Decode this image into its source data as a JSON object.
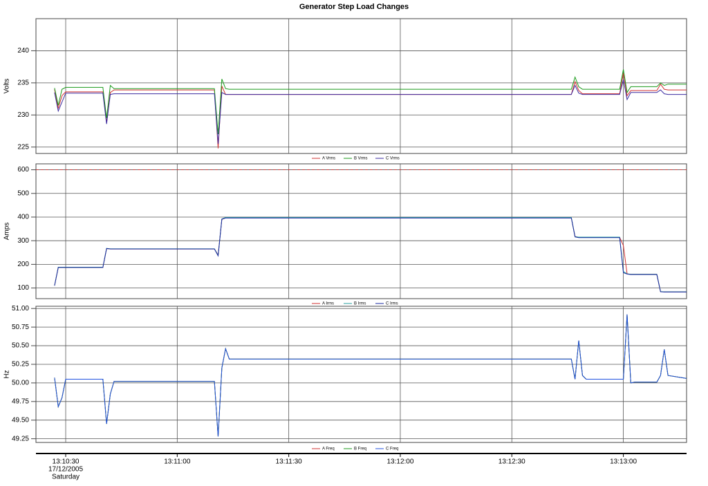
{
  "title": "Generator Step Load Changes",
  "chart_data": [
    {
      "type": "line",
      "ylabel": "Volts",
      "grid": true,
      "legend": "bottom",
      "x": [
        "13:10:27",
        "13:10:28",
        "13:10:29",
        "13:10:30",
        "13:10:31",
        "13:10:40",
        "13:10:41",
        "13:10:42",
        "13:10:43",
        "13:10:44",
        "13:11:10",
        "13:11:11",
        "13:11:12",
        "13:11:13",
        "13:11:14",
        "13:12:46",
        "13:12:47",
        "13:12:48",
        "13:12:49",
        "13:12:50",
        "13:12:59",
        "13:13:00",
        "13:13:01",
        "13:13:02",
        "13:13:03",
        "13:13:09",
        "13:13:10",
        "13:13:11",
        "13:13:12",
        "13:13:17"
      ],
      "xlim": [
        "13:10:22",
        "13:13:17"
      ],
      "xticks": [
        "13:10:30",
        "13:11:00",
        "13:11:30",
        "13:12:00",
        "13:12:30",
        "13:13:00"
      ],
      "ylim": [
        224,
        245
      ],
      "yticks": [
        225,
        230,
        235,
        240
      ],
      "series": [
        {
          "name": "A Vrms",
          "color": "#d03030",
          "values": [
            234.0,
            231.0,
            233.0,
            233.6,
            233.6,
            233.6,
            228.8,
            233.5,
            233.9,
            233.9,
            233.9,
            224.8,
            234.5,
            233.2,
            233.2,
            233.2,
            235.2,
            233.8,
            233.3,
            233.3,
            233.3,
            236.5,
            233.0,
            233.8,
            233.8,
            233.8,
            234.8,
            234.0,
            233.9,
            233.9
          ]
        },
        {
          "name": "B Vrms",
          "color": "#1a9a1a",
          "values": [
            234.2,
            231.5,
            234.0,
            234.3,
            234.3,
            234.3,
            229.5,
            234.6,
            234.1,
            234.1,
            234.1,
            227.0,
            235.6,
            234.1,
            234.0,
            234.0,
            235.9,
            234.4,
            234.0,
            234.0,
            234.0,
            237.1,
            233.5,
            234.4,
            234.4,
            234.4,
            235.0,
            234.6,
            234.8,
            234.8
          ]
        },
        {
          "name": "C Vrms",
          "color": "#3a2aa0",
          "values": [
            233.5,
            230.6,
            232.0,
            233.4,
            233.4,
            233.4,
            228.6,
            233.2,
            233.3,
            233.3,
            233.3,
            225.5,
            233.5,
            233.2,
            233.2,
            233.2,
            234.6,
            233.4,
            233.2,
            233.2,
            233.2,
            235.5,
            232.4,
            233.5,
            233.5,
            233.5,
            233.9,
            233.3,
            233.2,
            233.2
          ]
        }
      ]
    },
    {
      "type": "line",
      "ylabel": "Amps",
      "grid": true,
      "legend": "bottom",
      "x": [
        "13:10:27",
        "13:10:28",
        "13:10:29",
        "13:10:30",
        "13:10:31",
        "13:10:40",
        "13:10:41",
        "13:10:42",
        "13:10:43",
        "13:10:44",
        "13:11:10",
        "13:11:11",
        "13:11:12",
        "13:11:13",
        "13:11:14",
        "13:12:46",
        "13:12:47",
        "13:12:48",
        "13:12:49",
        "13:12:50",
        "13:12:59",
        "13:13:00",
        "13:13:01",
        "13:13:02",
        "13:13:03",
        "13:13:09",
        "13:13:10",
        "13:13:11",
        "13:13:12",
        "13:13:17"
      ],
      "xlim": [
        "13:10:22",
        "13:13:17"
      ],
      "xticks": [
        "13:10:30",
        "13:11:00",
        "13:11:30",
        "13:12:00",
        "13:12:30",
        "13:13:00"
      ],
      "ylim": [
        55,
        625
      ],
      "yticks": [
        100,
        200,
        300,
        400,
        500,
        600
      ],
      "reference_line": {
        "value": 600,
        "color": "#d03030"
      },
      "series": [
        {
          "name": "A Irms",
          "color": "#d03030",
          "values": [
            110,
            187,
            187,
            187,
            187,
            187,
            267,
            265,
            265,
            265,
            265,
            240,
            390,
            397,
            397,
            397,
            318,
            314,
            314,
            314,
            314,
            280,
            160,
            158,
            158,
            158,
            85,
            84,
            84,
            84
          ]
        },
        {
          "name": "B Irms",
          "color": "#2aa0a0",
          "values": [
            110,
            188,
            188,
            188,
            188,
            188,
            268,
            266,
            266,
            266,
            266,
            238,
            392,
            398,
            398,
            398,
            317,
            315,
            315,
            315,
            315,
            170,
            160,
            158,
            158,
            158,
            85,
            84,
            84,
            84
          ]
        },
        {
          "name": "C Irms",
          "color": "#1a2aa0",
          "values": [
            110,
            187,
            187,
            187,
            187,
            187,
            267,
            265,
            265,
            265,
            265,
            236,
            391,
            396,
            396,
            396,
            316,
            313,
            313,
            313,
            313,
            165,
            159,
            157,
            157,
            157,
            84,
            83,
            83,
            83
          ]
        }
      ]
    },
    {
      "type": "line",
      "ylabel": "Hz",
      "grid": true,
      "legend": "bottom",
      "x": [
        "13:10:27",
        "13:10:28",
        "13:10:29",
        "13:10:30",
        "13:10:31",
        "13:10:40",
        "13:10:41",
        "13:10:42",
        "13:10:43",
        "13:10:44",
        "13:11:10",
        "13:11:11",
        "13:11:12",
        "13:11:13",
        "13:11:14",
        "13:12:46",
        "13:12:47",
        "13:12:48",
        "13:12:49",
        "13:12:50",
        "13:12:59",
        "13:13:00",
        "13:13:01",
        "13:13:02",
        "13:13:03",
        "13:13:09",
        "13:13:10",
        "13:13:11",
        "13:13:12",
        "13:13:17"
      ],
      "xlim": [
        "13:10:22",
        "13:13:17"
      ],
      "xticks": [
        "13:10:30",
        "13:11:00",
        "13:11:30",
        "13:12:00",
        "13:12:30",
        "13:13:00"
      ],
      "xtick_sublabels": [
        "17/12/2005",
        "Saturday"
      ],
      "ylim": [
        49.2,
        51.03
      ],
      "yticks": [
        {
          "value": 49.25,
          "label": "49.25"
        },
        {
          "value": 49.5,
          "label": "49.50"
        },
        49.75,
        {
          "value": 50,
          "label": "50.00"
        },
        50.25,
        {
          "value": 50.5,
          "label": "50.50"
        },
        50.75,
        {
          "value": 51,
          "label": "51.00"
        }
      ],
      "series": [
        {
          "name": "A Freq",
          "color": "#d03030",
          "values": [
            50.07,
            49.68,
            49.8,
            50.05,
            50.05,
            50.05,
            49.45,
            49.85,
            50.02,
            50.02,
            50.02,
            49.28,
            50.2,
            50.46,
            50.32,
            50.32,
            50.05,
            50.57,
            50.1,
            50.05,
            50.05,
            50.05,
            50.92,
            50.0,
            50.01,
            50.01,
            50.1,
            50.45,
            50.1,
            50.06
          ]
        },
        {
          "name": "B Freq",
          "color": "#1a9a1a",
          "values": [
            50.07,
            49.68,
            49.8,
            50.05,
            50.05,
            50.05,
            49.45,
            49.85,
            50.02,
            50.02,
            50.02,
            49.28,
            50.2,
            50.46,
            50.32,
            50.32,
            50.05,
            50.57,
            50.1,
            50.05,
            50.05,
            50.05,
            50.92,
            50.0,
            50.01,
            50.01,
            50.1,
            50.45,
            50.1,
            50.06
          ]
        },
        {
          "name": "C Freq",
          "color": "#2050e0",
          "values": [
            50.07,
            49.68,
            49.8,
            50.05,
            50.05,
            50.05,
            49.45,
            49.85,
            50.02,
            50.02,
            50.02,
            49.28,
            50.2,
            50.46,
            50.32,
            50.32,
            50.05,
            50.57,
            50.1,
            50.05,
            50.05,
            50.05,
            50.92,
            50.0,
            50.01,
            50.01,
            50.1,
            50.45,
            50.1,
            50.06
          ]
        }
      ]
    }
  ]
}
